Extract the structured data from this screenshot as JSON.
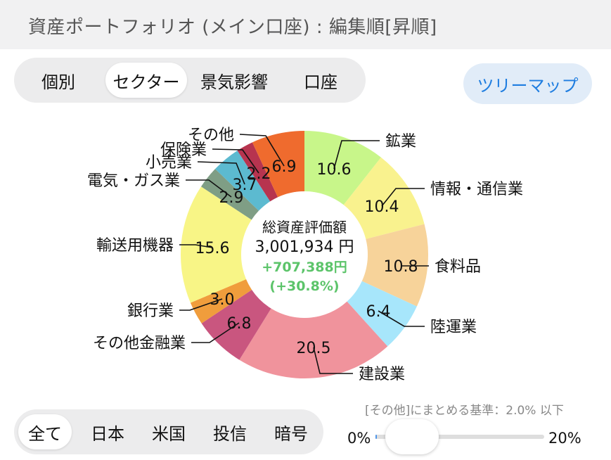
{
  "header": {
    "title": "資産ポートフォリオ (メイン口座) : 編集順[昇順]"
  },
  "view_tabs": [
    {
      "label": "個別",
      "active": false
    },
    {
      "label": "セクター",
      "active": true
    },
    {
      "label": "景気影響",
      "active": false
    },
    {
      "label": "口座",
      "active": false
    }
  ],
  "treemap_button": {
    "label": "ツリーマップ"
  },
  "market_tabs": [
    {
      "label": "全て",
      "active": true
    },
    {
      "label": "日本",
      "active": false
    },
    {
      "label": "米国",
      "active": false
    },
    {
      "label": "投信",
      "active": false
    },
    {
      "label": "暗号",
      "active": false
    }
  ],
  "threshold": {
    "label": "[その他]にまとめる基準：2.0% 以下",
    "min_label": "0%",
    "max_label": "20%",
    "value_fraction": 0.1
  },
  "center": {
    "title": "総資産評価額",
    "total": "3,001,934 円",
    "gain": "+707,388円",
    "gain_pct": "(+30.8%)",
    "gain_color": "#5cc46a"
  },
  "chart_data": {
    "type": "pie",
    "donut": true,
    "start": "top",
    "direction": "clockwise",
    "slices": [
      {
        "label": "鉱業",
        "value": 10.6,
        "color": "#c8f68a"
      },
      {
        "label": "情報・通信業",
        "value": 10.4,
        "color": "#f9f28e"
      },
      {
        "label": "食料品",
        "value": 10.8,
        "color": "#f7d39a"
      },
      {
        "label": "陸運業",
        "value": 6.4,
        "color": "#a7e6fb"
      },
      {
        "label": "建設業",
        "value": 20.5,
        "color": "#f0939c"
      },
      {
        "label": "その他金融業",
        "value": 6.8,
        "color": "#c9567f"
      },
      {
        "label": "銀行業",
        "value": 3.0,
        "color": "#f09d3c"
      },
      {
        "label": "輸送用機器",
        "value": 15.6,
        "color": "#f8f586"
      },
      {
        "label": "電気・ガス業",
        "value": 2.9,
        "color": "#7f9e85"
      },
      {
        "label": "小売業",
        "value": 3.7,
        "color": "#5cbad0"
      },
      {
        "label": "保険業",
        "value": 2.2,
        "color": "#b7344f"
      },
      {
        "label": "その他",
        "value": 6.9,
        "color": "#ef6b2e"
      }
    ]
  }
}
